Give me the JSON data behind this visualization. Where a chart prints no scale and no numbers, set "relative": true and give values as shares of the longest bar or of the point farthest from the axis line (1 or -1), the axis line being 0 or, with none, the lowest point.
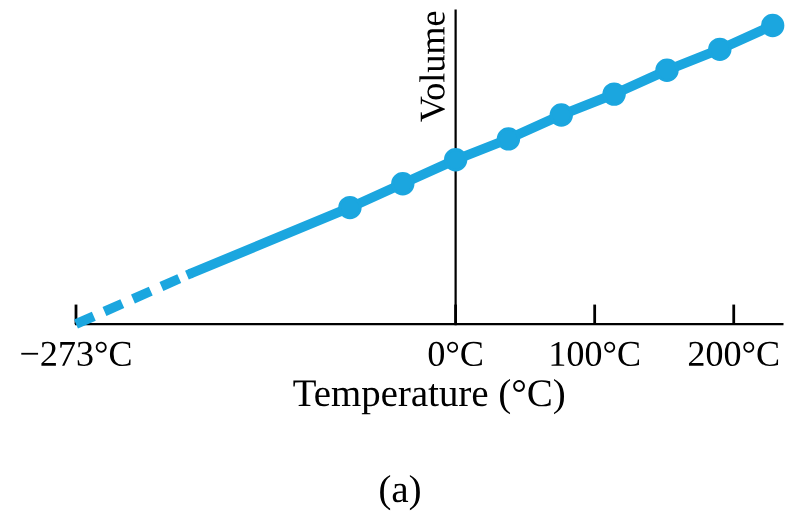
{
  "chart_data": {
    "type": "line",
    "relative": true,
    "xlabel": "Temperature (°C)",
    "ylabel": "Volume",
    "annotations": [
      "(a)"
    ],
    "xlim": [
      -273,
      235
    ],
    "xticks": [
      {
        "value": -273,
        "label": "−273°C"
      },
      {
        "value": 0,
        "label": "0°C"
      },
      {
        "value": 100,
        "label": "100°C"
      },
      {
        "value": 200,
        "label": "200°C"
      }
    ],
    "legend": false,
    "series": [
      {
        "line_style": "dashed",
        "marker": "none",
        "color": "#1ba6df",
        "x": [
          -273,
          -190
        ],
        "values": [
          0,
          0.17
        ]
      },
      {
        "line_style": "solid",
        "marker": "none",
        "color": "#1ba6df",
        "x": [
          -190,
          -76,
          -38,
          0,
          38,
          76,
          114,
          152,
          190,
          228
        ],
        "values": [
          0.17,
          0.39,
          0.47,
          0.55,
          0.62,
          0.7,
          0.77,
          0.85,
          0.92,
          1.0
        ]
      },
      {
        "type": "scatter",
        "marker": "circle",
        "color": "#1ba6df",
        "x": [
          -76,
          -38,
          0,
          38,
          76,
          114,
          152,
          190,
          228
        ],
        "values": [
          0.39,
          0.47,
          0.55,
          0.62,
          0.7,
          0.77,
          0.85,
          0.92,
          1.0
        ]
      }
    ]
  }
}
